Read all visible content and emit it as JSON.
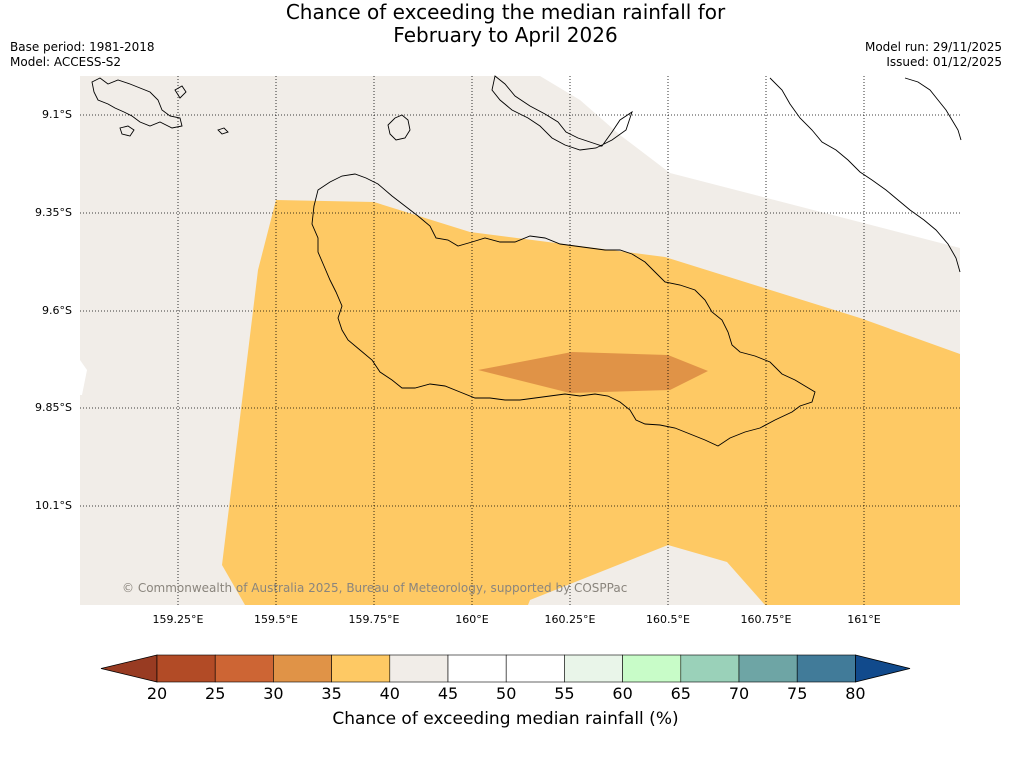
{
  "title": {
    "line1": "Chance of exceeding the median rainfall for",
    "line2": "February to April 2026"
  },
  "meta": {
    "base_period": "Base period: 1981-2018",
    "model": "Model: ACCESS-S2",
    "model_run": "Model run: 29/11/2025",
    "issued": "Issued: 01/12/2025"
  },
  "map": {
    "latitude_labels": [
      "9.1°S",
      "9.35°S",
      "9.6°S",
      "9.85°S",
      "10.1°S"
    ],
    "longitude_labels": [
      "159.25°E",
      "159.5°E",
      "159.75°E",
      "160°E",
      "160.25°E",
      "160.5°E",
      "160.75°E",
      "161°E"
    ],
    "copyright": "© Commonwealth of Australia 2025, Bureau of Meteorology, supported by COSPPac",
    "categories": [
      {
        "range": "35-40",
        "color": "#fec964"
      },
      {
        "range": "30-35",
        "color": "#e09347"
      },
      {
        "range": "40-45",
        "color": "#f1ede8"
      }
    ]
  },
  "colorbar": {
    "title": "Chance of exceeding median rainfall (%)",
    "ticks": [
      "20",
      "25",
      "30",
      "35",
      "40",
      "45",
      "50",
      "55",
      "60",
      "65",
      "70",
      "75",
      "80"
    ],
    "colors": [
      "#b24b26",
      "#cd6534",
      "#e09347",
      "#fec964",
      "#f1ede8",
      "#ffffff",
      "#ffffff",
      "#e9f5e9",
      "#c8fcc8",
      "#9ad1b9",
      "#6ea5a5",
      "#417b99"
    ],
    "under_color": "#983b22",
    "over_color": "#114a8c"
  }
}
